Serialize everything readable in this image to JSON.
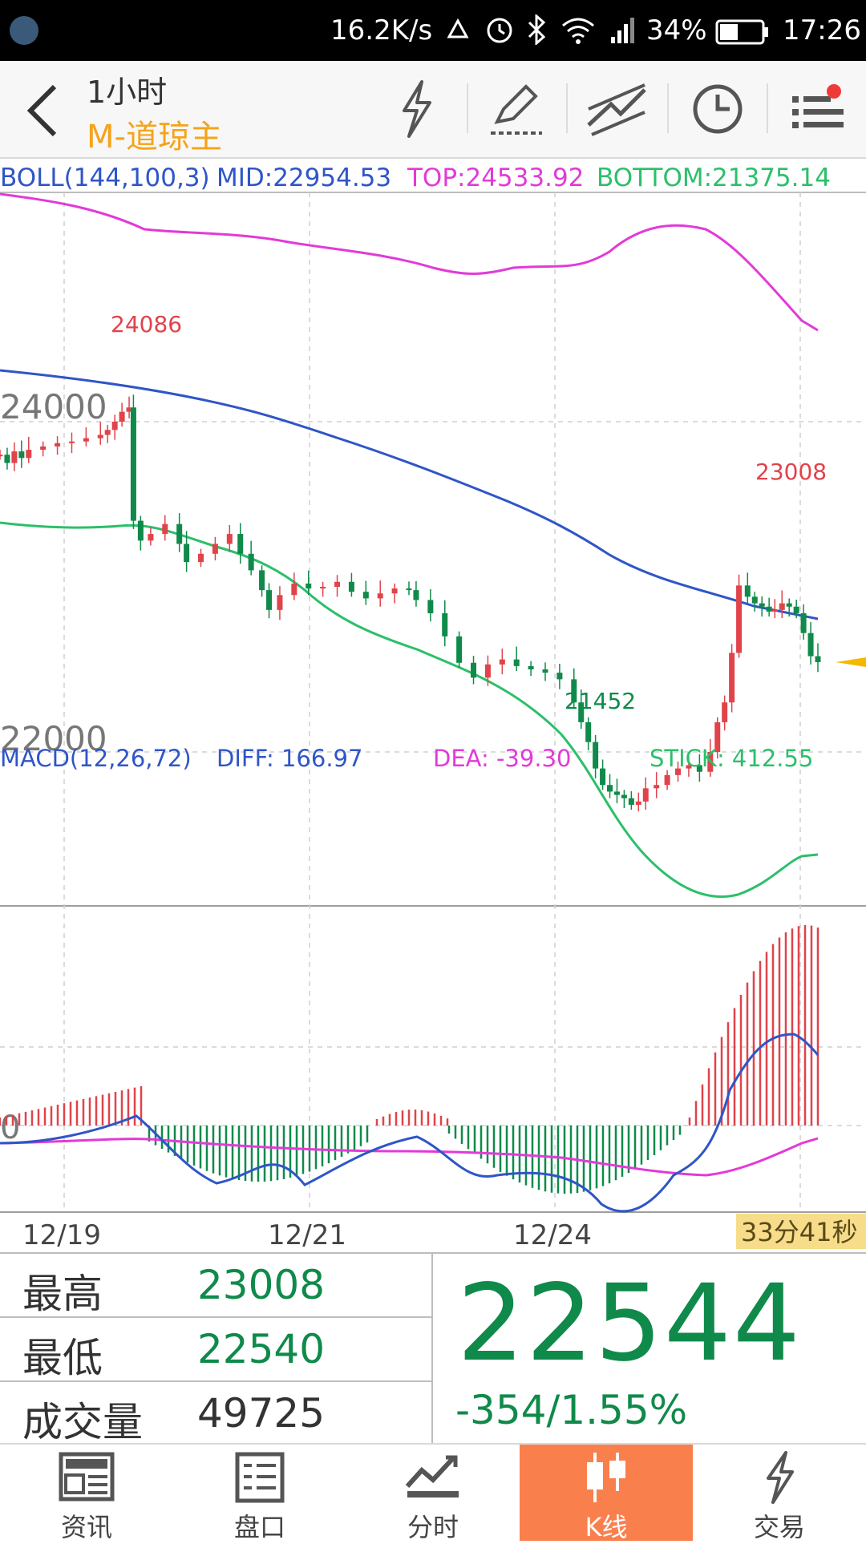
{
  "status_bar": {
    "speed": "16.2K/s",
    "battery": "34%",
    "time": "17:26"
  },
  "header": {
    "period": "1小时",
    "symbol": "M-道琼主"
  },
  "boll": {
    "label": "BOLL(144,100,3)",
    "mid": "MID:22954.53",
    "top": "TOP:24533.92",
    "bottom": "BOTTOM:21375.14"
  },
  "macd": {
    "label": "MACD(12,26,72)",
    "diff": "DIFF: 166.97",
    "dea": "DEA: -39.30",
    "stick": "STICK: 412.55"
  },
  "axes": {
    "y_top": "24000",
    "y_bottom": "22000",
    "macd_zero": "0"
  },
  "annotations": {
    "high": "24086",
    "mid_high": "23008",
    "low": "21452"
  },
  "dates": [
    "12/19",
    "12/21",
    "12/24"
  ],
  "countdown": "33分41秒",
  "quote": {
    "high_label": "最高",
    "high_value": "23008",
    "low_label": "最低",
    "low_value": "22540",
    "volume_label": "成交量",
    "volume_value": "49725",
    "price": "22544",
    "change": "-354/1.55%"
  },
  "nav": {
    "items": [
      {
        "label": "资讯",
        "icon": "news-icon"
      },
      {
        "label": "盘口",
        "icon": "orderbook-icon"
      },
      {
        "label": "分时",
        "icon": "timeshare-icon"
      },
      {
        "label": "K线",
        "icon": "candlestick-icon"
      },
      {
        "label": "交易",
        "icon": "trade-icon"
      }
    ],
    "active": "K线"
  },
  "colors": {
    "up": "#e0434a",
    "down": "#0f8a4a",
    "mid": "#2f55c8",
    "top": "#e23ad8",
    "bottom": "#2dbf6a",
    "accent": "#f97f4d"
  },
  "chart_data": {
    "type": "candlestick",
    "y_ticks": [
      24000,
      22000
    ],
    "x_ticks": [
      "12/19",
      "12/21",
      "12/24"
    ],
    "high_label": 24086,
    "low_label": 21452,
    "last_high": 23008,
    "series": [
      {
        "name": "MID",
        "value": 22954.53
      },
      {
        "name": "TOP",
        "value": 24533.92
      },
      {
        "name": "BOTTOM",
        "value": 21375.14
      }
    ]
  }
}
